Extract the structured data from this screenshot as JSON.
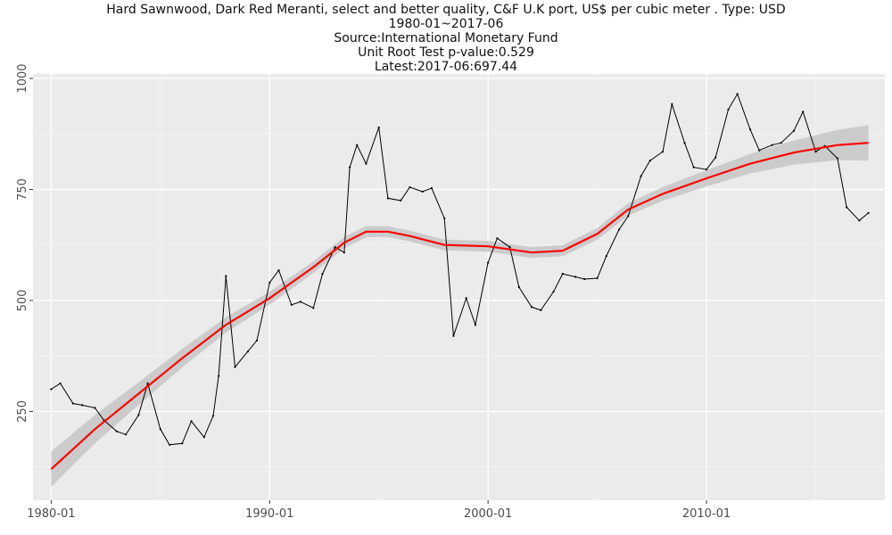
{
  "chart_data": {
    "type": "line",
    "title_lines": [
      "Hard Sawnwood, Dark Red Meranti, select and better quality, C&F U.K port, US$ per cubic meter . Type: USD",
      "1980-01~2017-06",
      "Source:International Monetary Fund",
      "Unit Root Test p-value:0.529",
      "Latest:2017-06:697.44"
    ],
    "xlabel": "",
    "ylabel": "",
    "x_ticks": [
      "1980-01",
      "1990-01",
      "2000-01",
      "2010-01"
    ],
    "y_ticks": [
      "250",
      "500",
      "750",
      "1000"
    ],
    "xlim": [
      "1979-03",
      "2018-03"
    ],
    "ylim": [
      50,
      1010
    ],
    "grid": true,
    "background": "#ebebeb",
    "colors": {
      "price": "#000000",
      "trend": "#ff0000",
      "band": "#c8c8c8"
    },
    "series": [
      {
        "kind": "price",
        "x": [
          "1980-01",
          "1980-06",
          "1981-01",
          "1981-06",
          "1982-01",
          "1982-06",
          "1983-01",
          "1983-06",
          "1984-01",
          "1984-06",
          "1985-01",
          "1985-06",
          "1986-01",
          "1986-06",
          "1987-01",
          "1987-06",
          "1987-09",
          "1988-01",
          "1988-06",
          "1989-01",
          "1989-06",
          "1990-01",
          "1990-06",
          "1991-01",
          "1991-06",
          "1992-01",
          "1992-06",
          "1993-01",
          "1993-06",
          "1993-09",
          "1994-01",
          "1994-06",
          "1995-01",
          "1995-06",
          "1996-01",
          "1996-06",
          "1997-01",
          "1997-06",
          "1998-01",
          "1998-06",
          "1999-01",
          "1999-06",
          "2000-01",
          "2000-06",
          "2001-01",
          "2001-06",
          "2002-01",
          "2002-06",
          "2003-01",
          "2003-06",
          "2004-01",
          "2004-06",
          "2005-01",
          "2005-06",
          "2006-01",
          "2006-06",
          "2007-01",
          "2007-06",
          "2008-01",
          "2008-06",
          "2009-01",
          "2009-06",
          "2010-01",
          "2010-06",
          "2011-01",
          "2011-06",
          "2012-01",
          "2012-06",
          "2013-01",
          "2013-06",
          "2014-01",
          "2014-06",
          "2015-01",
          "2015-06",
          "2016-01",
          "2016-06",
          "2017-01",
          "2017-06"
        ],
        "y": [
          300,
          313,
          268,
          264,
          258,
          230,
          205,
          198,
          242,
          313,
          210,
          175,
          178,
          228,
          192,
          240,
          330,
          555,
          350,
          385,
          410,
          540,
          568,
          490,
          497,
          483,
          560,
          620,
          608,
          800,
          850,
          808,
          890,
          730,
          725,
          755,
          745,
          753,
          685,
          420,
          505,
          445,
          585,
          640,
          620,
          530,
          485,
          478,
          520,
          560,
          553,
          548,
          550,
          600,
          660,
          690,
          780,
          815,
          835,
          942,
          855,
          800,
          795,
          822,
          930,
          965,
          885,
          838,
          850,
          855,
          882,
          925,
          835,
          848,
          820,
          710,
          680,
          697
        ]
      },
      {
        "kind": "trend",
        "x": [
          "1980-01",
          "1982-01",
          "1984-01",
          "1986-01",
          "1988-01",
          "1990-01",
          "1992-01",
          "1993-06",
          "1994-06",
          "1995-06",
          "1996-06",
          "1998-01",
          "2000-01",
          "2002-01",
          "2003-06",
          "2005-01",
          "2006-06",
          "2008-01",
          "2010-01",
          "2012-01",
          "2014-01",
          "2016-01",
          "2017-06"
        ],
        "y": [
          120,
          210,
          290,
          370,
          445,
          505,
          575,
          630,
          655,
          655,
          645,
          625,
          622,
          608,
          612,
          650,
          705,
          740,
          775,
          808,
          833,
          850,
          855
        ]
      }
    ]
  }
}
